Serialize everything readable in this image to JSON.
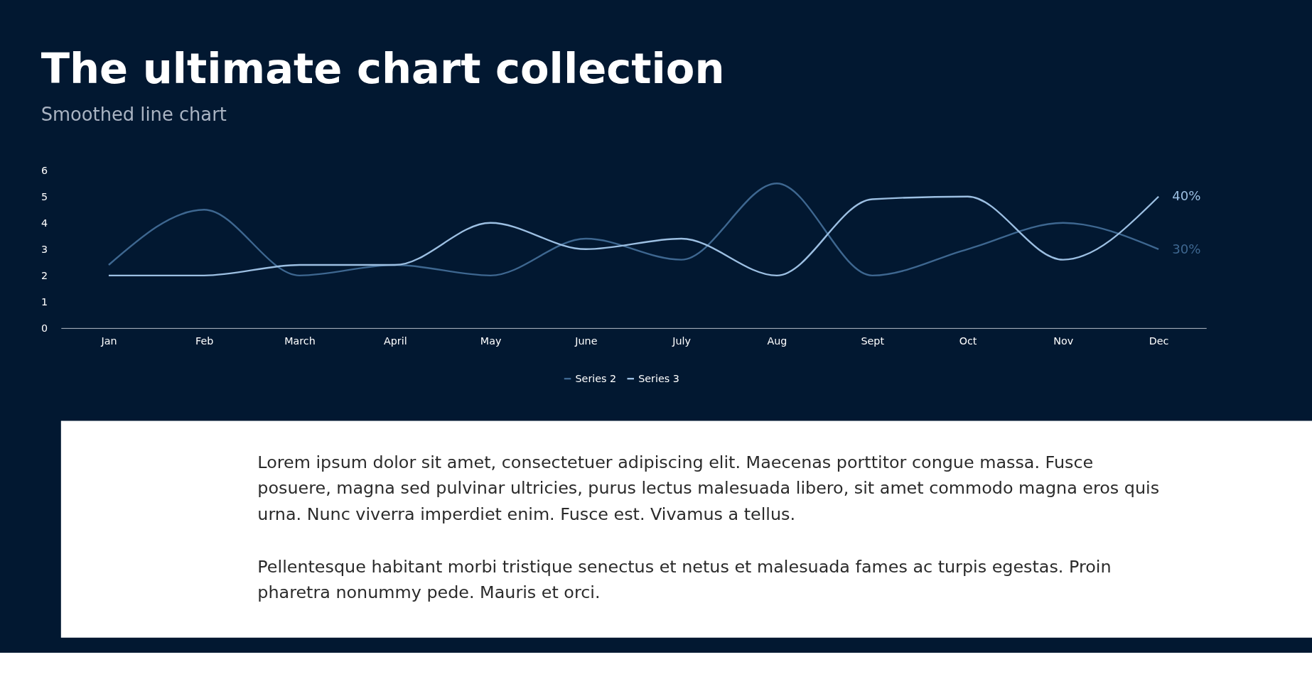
{
  "chart_data": {
    "type": "line",
    "title": "The ultimate chart collection",
    "subtitle": "Smoothed line chart",
    "categories": [
      "Jan",
      "Feb",
      "March",
      "April",
      "May",
      "June",
      "July",
      "Aug",
      "Sept",
      "Oct",
      "Nov",
      "Dec"
    ],
    "series": [
      {
        "name": "Series 2",
        "color": "#3e6790",
        "values": [
          2.4,
          4.5,
          2.0,
          2.4,
          2.0,
          3.4,
          2.6,
          5.5,
          2.0,
          3.0,
          4.0,
          3.0
        ]
      },
      {
        "name": "Series 3",
        "color": "#9cbfe2",
        "values": [
          2.0,
          2.0,
          2.4,
          2.4,
          4.0,
          3.0,
          3.4,
          2.0,
          4.9,
          5.0,
          2.6,
          5.0
        ]
      }
    ],
    "ylim": [
      0,
      6
    ],
    "yticks": [
      0,
      1,
      2,
      3,
      4,
      5,
      6
    ],
    "grid": false,
    "legend": "bottom",
    "marker": "none",
    "line_style": "solid",
    "annotations": [
      {
        "text": "40%",
        "x": "Dec",
        "y": 5
      },
      {
        "text": "30%",
        "x": "Dec",
        "y": 3
      },
      "Lorem ipsum dolor sit amet, consectetuer adipiscing elit. Maecenas porttitor congue massa. Fusce posuere, magna sed pulvinar ultricies, purus lectus malesuada libero, sit amet commodo magna eros quis urna. Nunc viverra imperdiet enim. Fusce est. Vivamus a tellus.",
      "Pellentesque habitant morbi tristique senectus et netus et malesuada fames ac turpis egestas. Proin pharetra nonummy pede. Mauris et orci."
    ]
  }
}
